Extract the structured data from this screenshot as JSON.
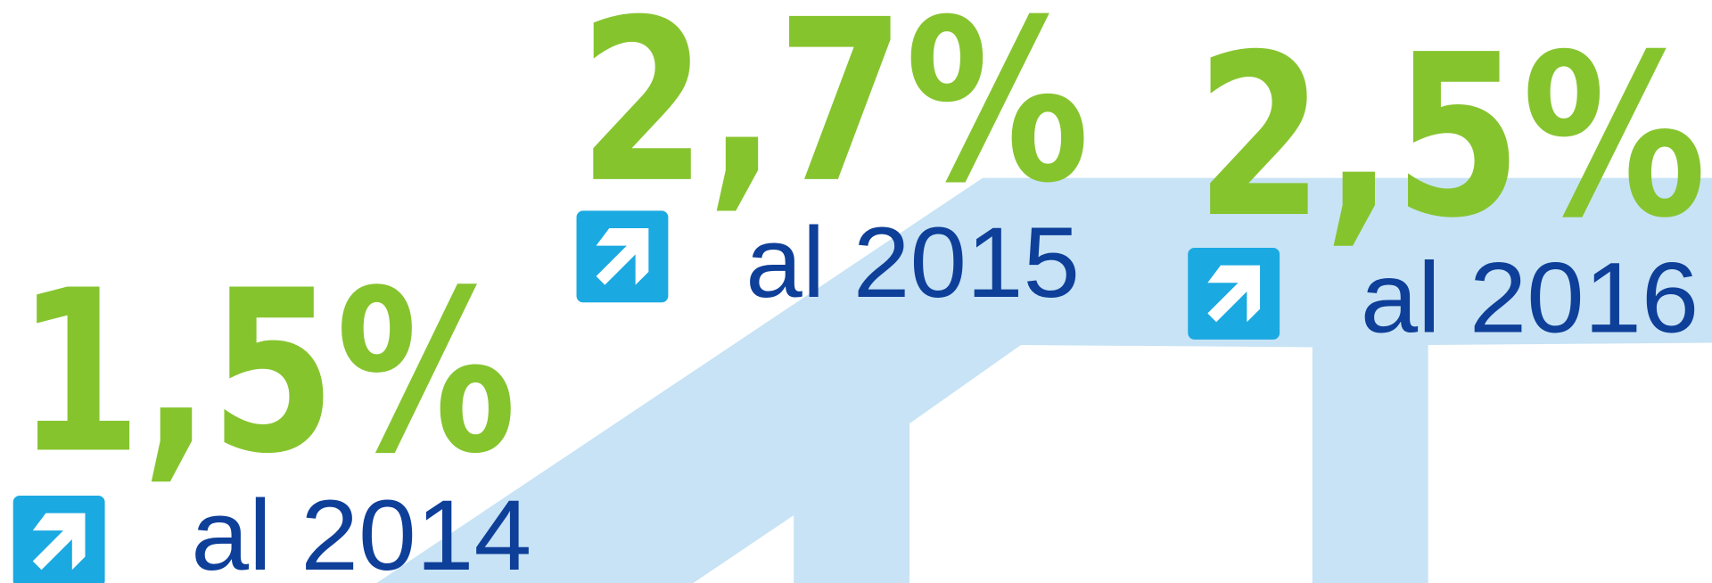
{
  "items": [
    {
      "value": "1,5%",
      "label": "al 2014"
    },
    {
      "value": "2,7%",
      "label": "al 2015"
    },
    {
      "value": "2,5%",
      "label": "al 2016"
    }
  ]
}
